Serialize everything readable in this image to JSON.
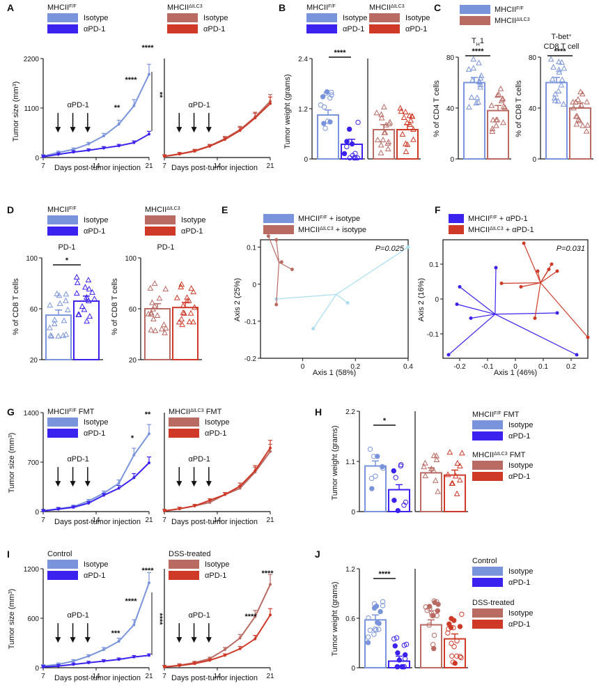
{
  "colors": {
    "iso_ff": "#7a94dc",
    "pd_ff": "#3b22ee",
    "iso_ilc": "#b86a63",
    "pd_ilc": "#cf3a28",
    "beta_e": "#a9ddf0"
  },
  "A": {
    "label": "A",
    "legend1": {
      "genotype": "MHCII",
      "sup": "F/F",
      "items": [
        "Isotype",
        "αPD-1"
      ]
    },
    "legend2": {
      "genotype": "MHCII",
      "sup": "ΔILC3",
      "items": [
        "Isotype",
        "αPD-1"
      ]
    },
    "ylabel": "Tumor size (mm",
    "ylabel_sup": "3",
    "ylabel_end": ")",
    "xlabel": "Days post-tumor injection",
    "xticks": [
      "7",
      "14",
      "21"
    ],
    "yticks": [
      "0",
      "1100",
      "2200"
    ],
    "arrow_label": "αPD-1",
    "stars": [
      "**",
      "****",
      "****",
      "**"
    ]
  },
  "B": {
    "label": "B",
    "legend1": {
      "genotype": "MHCII",
      "sup": "F/F",
      "items": [
        "Isotype",
        "αPD-1"
      ]
    },
    "legend2": {
      "genotype": "MHCII",
      "sup": "ΔILC3",
      "items": [
        "Isotype",
        "αPD-1"
      ]
    },
    "ylabel": "Tumor weight (grams)",
    "yticks": [
      "0",
      "1.2",
      "2.4"
    ],
    "stars": "****"
  },
  "C": {
    "label": "C",
    "legend": [
      {
        "genotype": "MHCII",
        "sup": "F/F"
      },
      {
        "genotype": "MHCII",
        "sup": "ΔILC3"
      }
    ],
    "title1": "T",
    "title1_sub": "H",
    "title1_end": "1",
    "title2a": "T-bet",
    "title2a_sup": "+",
    "title2b": "CD8 T cell",
    "ylabel1": "% of CD4 T cells",
    "ylabel2": "% of CD8 T cells",
    "yticks": [
      "0",
      "40",
      "80"
    ],
    "stars": "****"
  },
  "D": {
    "label": "D",
    "legend1": {
      "genotype": "MHCII",
      "sup": "F/F",
      "items": [
        "Isotype",
        "αPD-1"
      ]
    },
    "legend2": {
      "genotype": "MHCII",
      "sup": "ΔILC3",
      "items": [
        "Isotype",
        "αPD-1"
      ]
    },
    "title": "PD-1",
    "ylabel": "% of CD8 T cells",
    "yticks": [
      "20",
      "60",
      "100"
    ],
    "stars": "*"
  },
  "E": {
    "label": "E",
    "legend": [
      "MHCII",
      "F/F",
      " + isotype",
      "MHCII",
      "ΔILC3",
      " + isotype"
    ],
    "p": "P=0.025",
    "xlabel": "Axis 1 (58%)",
    "ylabel": "Axis 2 (25%)",
    "xticks": [
      "0",
      "0.2",
      "0.4"
    ],
    "yticks": [
      "-0.2",
      "-0.1",
      "0",
      "0.1"
    ]
  },
  "F": {
    "label": "F",
    "legend": [
      "MHCII",
      "F/F",
      " + αPD-1",
      "MHCII",
      "ΔILC3",
      " + αPD-1"
    ],
    "p": "P=0.031",
    "xlabel": "Axis 1 (46%)",
    "ylabel": "Axis 2 (16%)",
    "xticks": [
      "-0.2",
      "-0.1",
      "0",
      "0.1",
      "0.2"
    ],
    "yticks": [
      "-0.1",
      "0",
      "0.1"
    ]
  },
  "G": {
    "label": "G",
    "legend1": {
      "genotype": "MHCII",
      "sup": "F/F",
      "suffix": " FMT",
      "items": [
        "Isotype",
        "αPD-1"
      ]
    },
    "legend2": {
      "genotype": "MHCII",
      "sup": "ΔILC3",
      "suffix": " FMT",
      "items": [
        "Isotype",
        "αPD-1"
      ]
    },
    "ylabel": "Tumor size (mm",
    "ylabel_sup": "3",
    "ylabel_end": ")",
    "xlabel": "Days post-tumor injection",
    "xticks": [
      "7",
      "14",
      "21"
    ],
    "yticks": [
      "0",
      "700",
      "1400"
    ],
    "arrow_label": "αPD-1",
    "stars": [
      "*",
      "**"
    ]
  },
  "H": {
    "label": "H",
    "ylabel": "Tumor weight (grams)",
    "yticks": [
      "0",
      "1.1",
      "2.2"
    ],
    "stars": "*",
    "legend1": {
      "genotype": "MHCII",
      "sup": "F/F",
      "suffix": " FMT",
      "items": [
        "Isotype",
        "αPD-1"
      ]
    },
    "legend2": {
      "genotype": "MHCII",
      "sup": "ΔILC3",
      "suffix": " FMT",
      "items": [
        "Isotype",
        "αPD-1"
      ]
    }
  },
  "I": {
    "label": "I",
    "legend1": {
      "title": "Control",
      "items": [
        "Isotype",
        "αPD-1"
      ]
    },
    "legend2": {
      "title": "DSS-treated",
      "items": [
        "Isotype",
        "αPD-1"
      ]
    },
    "ylabel": "Tumor size (mm",
    "ylabel_sup": "3",
    "ylabel_end": ")",
    "xlabel": "Days post-tumor injection",
    "xticks": [
      "7",
      "14",
      "21"
    ],
    "yticks": [
      "0",
      "600",
      "1200"
    ],
    "arrow_label": "αPD-1",
    "stars": [
      "***",
      "****",
      "****",
      "****",
      "****",
      "****"
    ]
  },
  "J": {
    "label": "J",
    "ylabel": "Tumor weight (grams)",
    "yticks": [
      "0",
      "0.6",
      "1.2"
    ],
    "stars": "****",
    "legend1": {
      "title": "Control",
      "items": [
        "Isotype",
        "αPD-1"
      ]
    },
    "legend2": {
      "title": "DSS-treated",
      "items": [
        "Isotype",
        "αPD-1"
      ]
    }
  },
  "chart_data": [
    {
      "panel": "A-left",
      "type": "line",
      "x": [
        7,
        9,
        11,
        13,
        15,
        17,
        19,
        21
      ],
      "ylim": [
        0,
        2200
      ],
      "series": [
        {
          "name": "Isotype",
          "values": [
            30,
            110,
            180,
            300,
            480,
            740,
            1150,
            1850
          ]
        },
        {
          "name": "αPD-1",
          "values": [
            20,
            70,
            120,
            160,
            210,
            260,
            330,
            520
          ]
        }
      ]
    },
    {
      "panel": "A-right",
      "type": "line",
      "x": [
        7,
        9,
        11,
        13,
        15,
        17,
        19,
        21
      ],
      "ylim": [
        0,
        2200
      ],
      "series": [
        {
          "name": "Isotype",
          "values": [
            30,
            80,
            150,
            260,
            420,
            620,
            900,
            1250
          ]
        },
        {
          "name": "αPD-1",
          "values": [
            25,
            75,
            140,
            250,
            400,
            600,
            880,
            1200
          ]
        }
      ]
    },
    {
      "panel": "B",
      "type": "bar",
      "ylim": [
        0,
        2.4
      ],
      "categories": [
        "Isotype",
        "αPD-1",
        "Isotype",
        "αPD-1"
      ],
      "values": [
        1.05,
        0.35,
        0.7,
        0.7
      ]
    },
    {
      "panel": "C-TH1",
      "type": "bar",
      "ylim": [
        0,
        80
      ],
      "categories": [
        "MHCII F/F",
        "MHCII ΔILC3"
      ],
      "values": [
        60,
        38
      ]
    },
    {
      "panel": "C-Tbet",
      "type": "bar",
      "ylim": [
        0,
        80
      ],
      "categories": [
        "MHCII F/F",
        "MHCII ΔILC3"
      ],
      "values": [
        60,
        40
      ]
    },
    {
      "panel": "D-left",
      "type": "bar",
      "ylim": [
        20,
        100
      ],
      "categories": [
        "Isotype",
        "αPD-1"
      ],
      "values": [
        55,
        66
      ]
    },
    {
      "panel": "D-right",
      "type": "bar",
      "ylim": [
        20,
        100
      ],
      "categories": [
        "Isotype",
        "αPD-1"
      ],
      "values": [
        60,
        61
      ]
    },
    {
      "panel": "E",
      "type": "scatter",
      "xlim": [
        -0.16,
        0.4
      ],
      "ylim": [
        -0.2,
        0.12
      ],
      "series": [
        {
          "name": "MHCII F/F + isotype",
          "points": [
            [
              0.4,
              0.1
            ],
            [
              0.17,
              -0.05
            ],
            [
              0.04,
              -0.12
            ],
            [
              -0.1,
              -0.04
            ]
          ]
        },
        {
          "name": "MHCII ΔILC3 + isotype",
          "points": [
            [
              -0.13,
              0.13
            ],
            [
              -0.1,
              0.12
            ],
            [
              -0.08,
              0.06
            ],
            [
              -0.04,
              0.04
            ],
            [
              -0.1,
              -0.055
            ]
          ]
        }
      ]
    },
    {
      "panel": "F",
      "type": "scatter",
      "xlim": [
        -0.26,
        0.26
      ],
      "ylim": [
        -0.17,
        0.17
      ],
      "series": [
        {
          "name": "MHCII F/F + αPD-1",
          "points": [
            [
              -0.2,
              0.035
            ],
            [
              -0.21,
              -0.015
            ],
            [
              -0.16,
              -0.055
            ],
            [
              -0.24,
              -0.16
            ],
            [
              -0.07,
              0.09
            ],
            [
              0.15,
              -0.04
            ],
            [
              0.22,
              -0.16
            ]
          ]
        },
        {
          "name": "MHCII ΔILC3 + αPD-1",
          "points": [
            [
              -0.05,
              0.045
            ],
            [
              0.03,
              0.16
            ],
            [
              0.02,
              0.035
            ],
            [
              0.08,
              0.08
            ],
            [
              0.12,
              0.085
            ],
            [
              0.13,
              0.1
            ],
            [
              0.15,
              0.08
            ],
            [
              0.07,
              -0.055
            ],
            [
              0.26,
              -0.11
            ]
          ]
        }
      ]
    },
    {
      "panel": "G-left",
      "type": "line",
      "x": [
        7,
        9,
        11,
        13,
        15,
        17,
        19,
        21
      ],
      "ylim": [
        0,
        1400
      ],
      "series": [
        {
          "name": "Isotype",
          "values": [
            10,
            40,
            70,
            150,
            260,
            400,
            800,
            1100
          ]
        },
        {
          "name": "αPD-1",
          "values": [
            10,
            35,
            60,
            120,
            230,
            330,
            480,
            690
          ]
        }
      ]
    },
    {
      "panel": "G-right",
      "type": "line",
      "x": [
        7,
        9,
        11,
        13,
        15,
        17,
        19,
        21
      ],
      "ylim": [
        0,
        1400
      ],
      "series": [
        {
          "name": "Isotype",
          "values": [
            10,
            40,
            80,
            130,
            240,
            330,
            560,
            850
          ]
        },
        {
          "name": "αPD-1",
          "values": [
            10,
            40,
            80,
            160,
            240,
            360,
            580,
            900
          ]
        }
      ]
    },
    {
      "panel": "H",
      "type": "bar",
      "ylim": [
        0,
        2.2
      ],
      "categories": [
        "Isotype",
        "αPD-1",
        "Isotype",
        "αPD-1"
      ],
      "values": [
        1.0,
        0.48,
        0.85,
        0.8
      ]
    },
    {
      "panel": "I-left",
      "type": "line",
      "x": [
        7,
        9,
        11,
        13,
        15,
        17,
        19,
        21
      ],
      "ylim": [
        0,
        1200
      ],
      "series": [
        {
          "name": "Isotype",
          "values": [
            20,
            40,
            80,
            140,
            220,
            320,
            520,
            1030
          ]
        },
        {
          "name": "αPD-1",
          "values": [
            10,
            20,
            40,
            60,
            80,
            100,
            130,
            150
          ]
        }
      ]
    },
    {
      "panel": "I-right",
      "type": "line",
      "x": [
        7,
        9,
        11,
        13,
        15,
        17,
        19,
        21
      ],
      "ylim": [
        0,
        1200
      ],
      "series": [
        {
          "name": "Isotype",
          "values": [
            10,
            30,
            60,
            110,
            220,
            360,
            620,
            1010
          ]
        },
        {
          "name": "αPD-1",
          "values": [
            10,
            25,
            50,
            90,
            150,
            230,
            350,
            640
          ]
        }
      ]
    },
    {
      "panel": "J",
      "type": "bar",
      "ylim": [
        0,
        1.2
      ],
      "categories": [
        "Isotype",
        "αPD-1",
        "Isotype",
        "αPD-1"
      ],
      "values": [
        0.58,
        0.08,
        0.52,
        0.35
      ]
    }
  ]
}
